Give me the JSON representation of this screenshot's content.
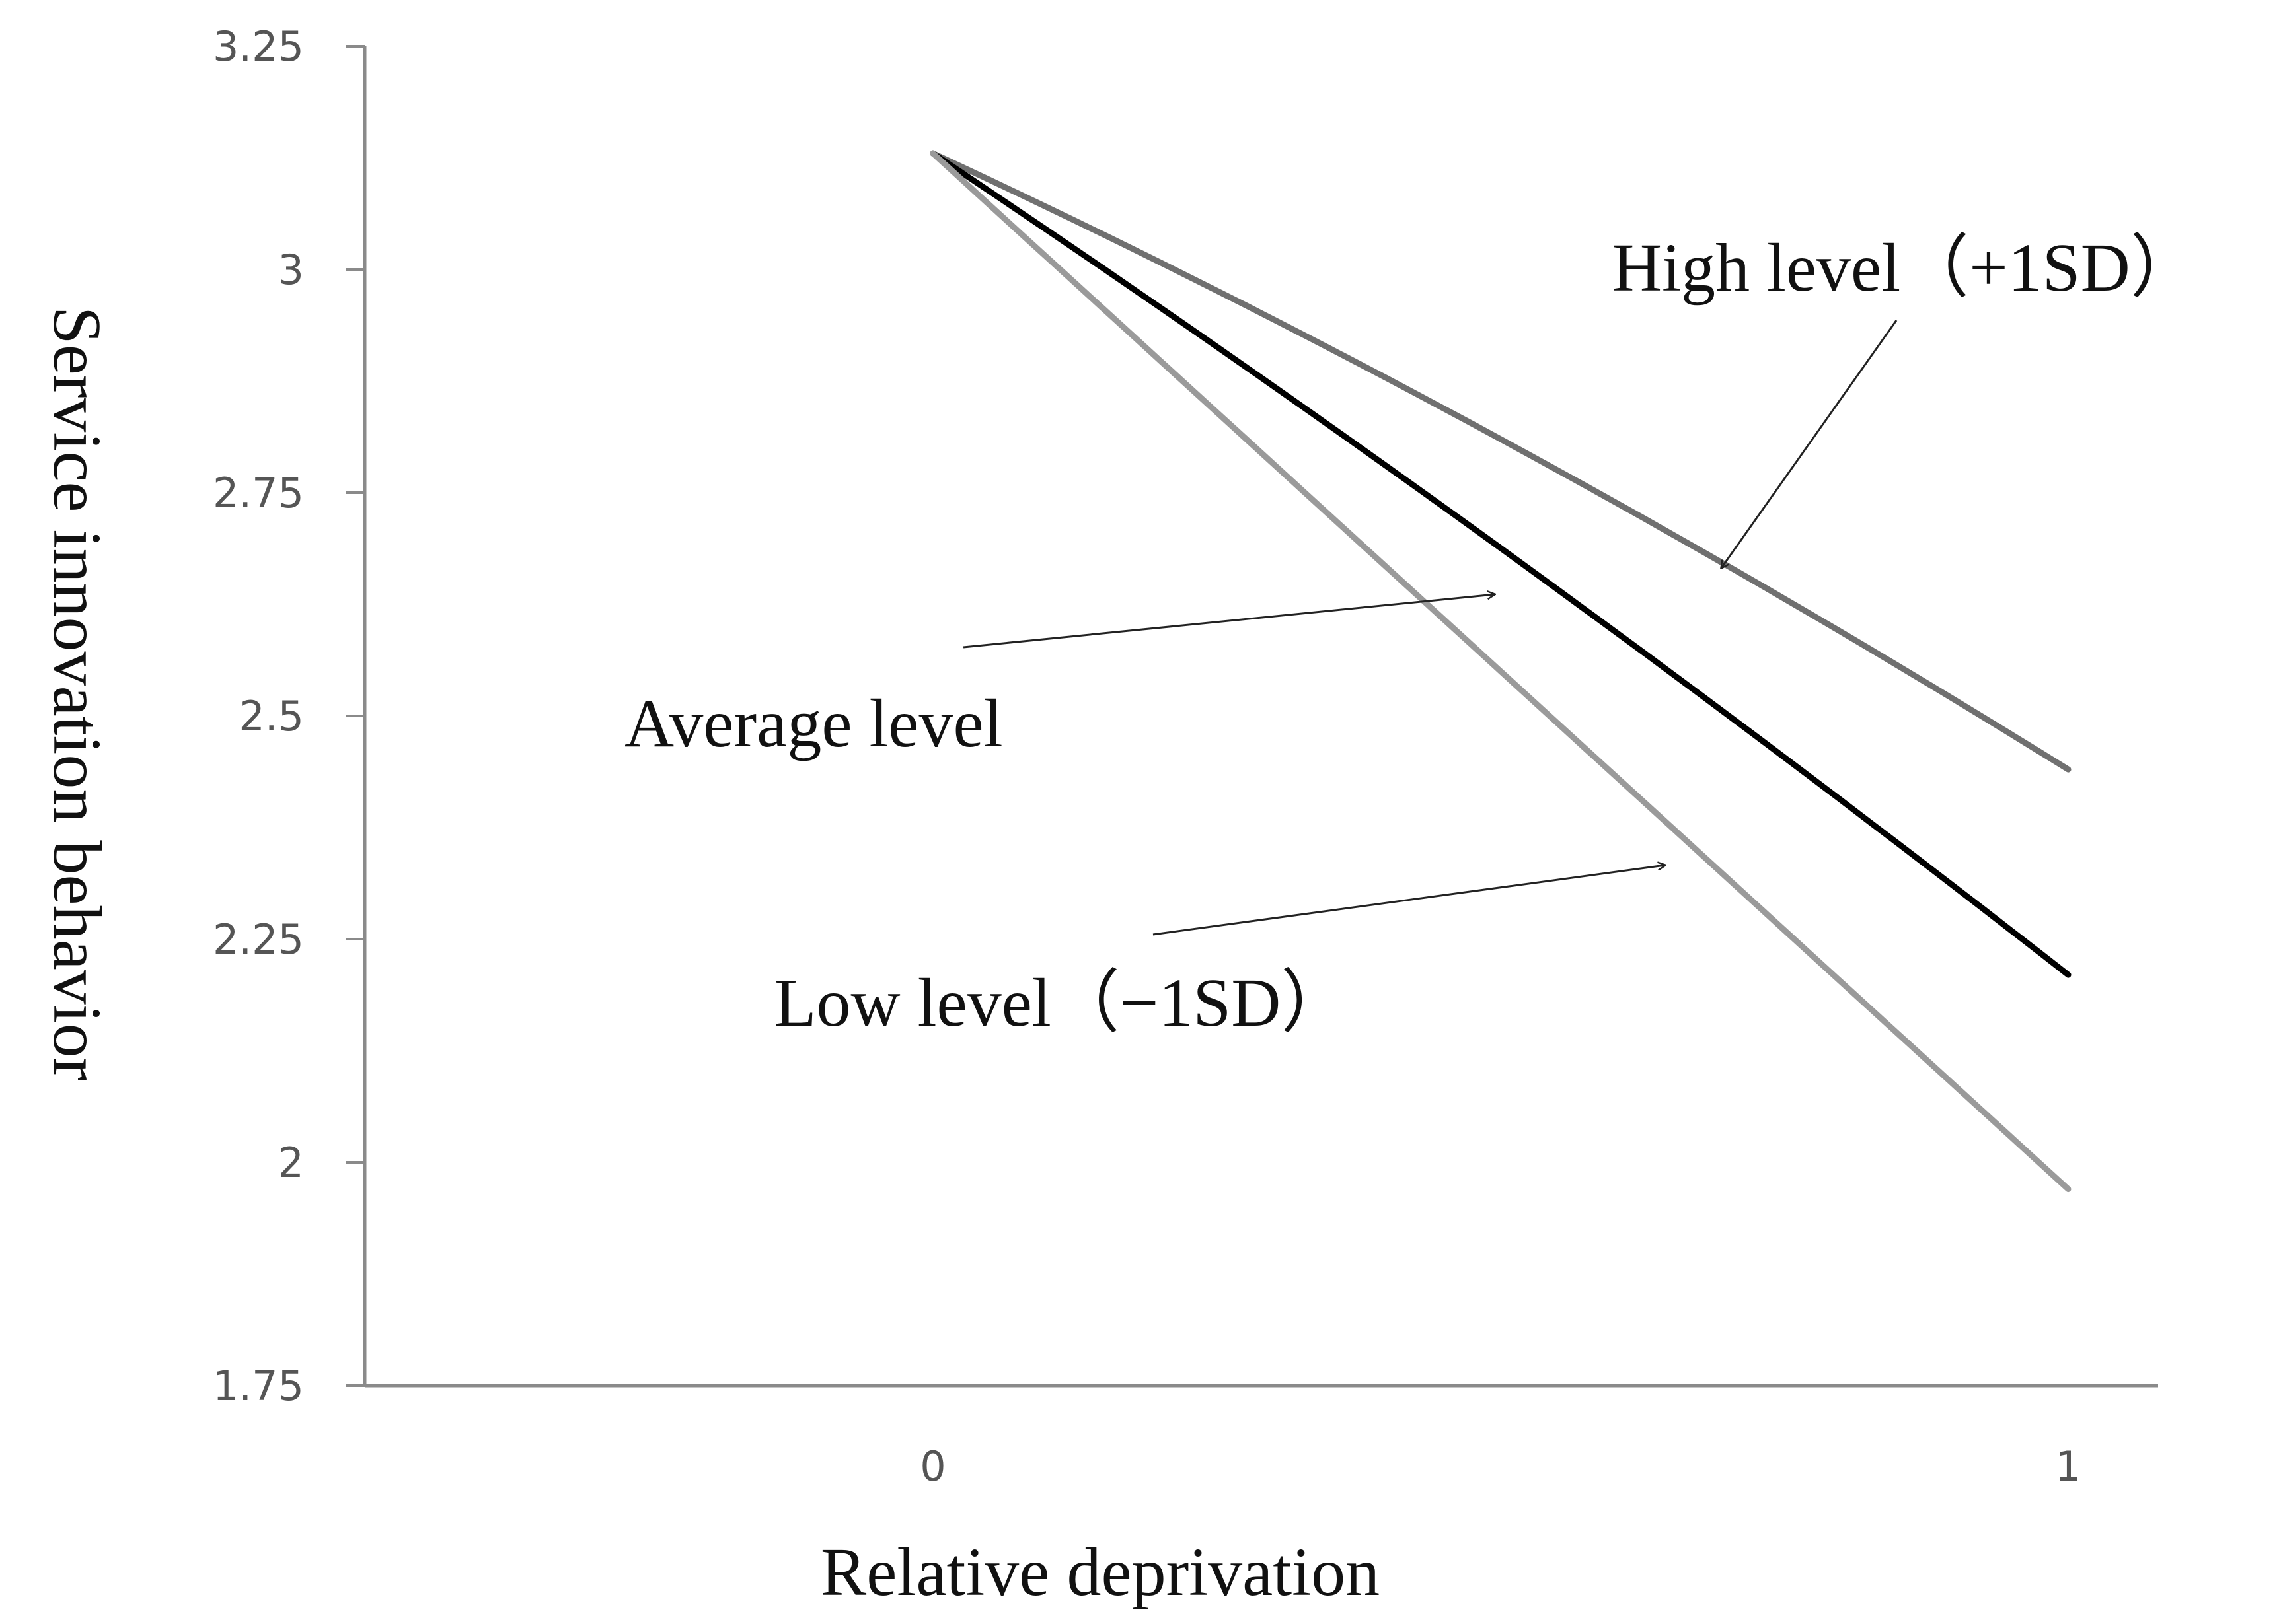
{
  "chart_data": {
    "type": "line",
    "title": "",
    "xlabel": "Relative deprivation",
    "ylabel": "Service innovation behavior",
    "x": [
      0,
      1
    ],
    "xticks": [
      "0",
      "1"
    ],
    "ylim": [
      1.75,
      3.25
    ],
    "yticks": [
      "1.75",
      "2",
      "2.25",
      "2.5",
      "2.75",
      "3",
      "3.25"
    ],
    "grid": false,
    "series": [
      {
        "name": "High level（+1SD）",
        "values": [
          3.13,
          2.44
        ],
        "color": "#707070",
        "curve": 0.025
      },
      {
        "name": "Average level",
        "values": [
          3.13,
          2.21
        ],
        "color": "#000000",
        "curve": 0.018
      },
      {
        "name": "Low level（−1SD）",
        "values": [
          3.13,
          1.97
        ],
        "color": "#9a9a9a",
        "curve": 0.0
      }
    ],
    "annotations": [
      {
        "text": "High level（+1SD）",
        "series": 0,
        "x": 0.7,
        "y": 2.67
      },
      {
        "text": "Average level",
        "series": 1,
        "x": 0.49,
        "y": 2.64
      },
      {
        "text": "Low level（−1SD）",
        "series": 2,
        "x": 0.64,
        "y": 2.35
      }
    ]
  }
}
